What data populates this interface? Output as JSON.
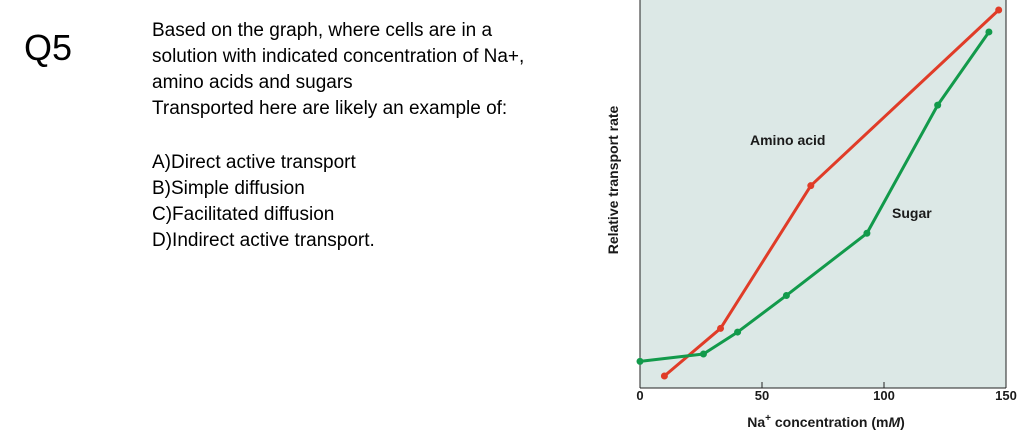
{
  "question": {
    "number": "Q5",
    "lines": [
      "Based on the graph, where cells are in a",
      "solution with indicated concentration of Na+,",
      "amino acids and sugars",
      "Transported here are likely an example of:"
    ],
    "options": [
      "A)Direct active transport",
      "B)Simple diffusion",
      "C)Facilitated diffusion",
      "D)Indirect active transport."
    ]
  },
  "chart_data": {
    "type": "line",
    "xlabel_prefix": "Na",
    "xlabel_sup": "+",
    "xlabel_rest": " concentration (m",
    "xlabel_unit_italic": "M",
    "xlabel_close": ")",
    "ylabel": "Relative transport rate",
    "xlim": [
      0,
      150
    ],
    "xticks": [
      0,
      50,
      100,
      150
    ],
    "background": "#dce8e6",
    "series": [
      {
        "name": "Amino acid",
        "color": "#e03c28",
        "points": [
          [
            10,
            0.0
          ],
          [
            33,
            0.13
          ],
          [
            70,
            0.52
          ],
          [
            147,
            1.0
          ]
        ]
      },
      {
        "name": "Sugar",
        "color": "#129a4b",
        "points": [
          [
            0,
            0.04
          ],
          [
            26,
            0.06
          ],
          [
            40,
            0.12
          ],
          [
            60,
            0.22
          ],
          [
            93,
            0.39
          ],
          [
            122,
            0.74
          ],
          [
            143,
            0.94
          ]
        ]
      }
    ]
  }
}
